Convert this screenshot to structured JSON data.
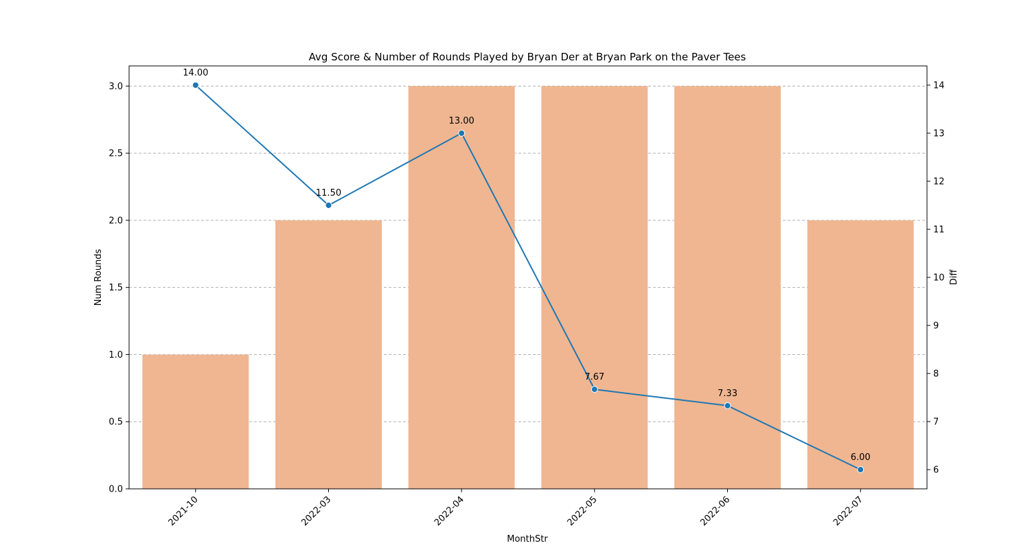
{
  "chart_data": {
    "type": "bar",
    "title": "Avg Score & Number of Rounds Played by Bryan Der at Bryan Park on the Paver Tees",
    "xlabel": "MonthStr",
    "ylabel_left": "Num Rounds",
    "ylabel_right": "Diff",
    "categories": [
      "2021-10",
      "2022-03",
      "2022-04",
      "2022-05",
      "2022-06",
      "2022-07"
    ],
    "series": [
      {
        "kind": "bar",
        "axis": "left",
        "values": [
          1,
          2,
          3,
          3,
          3,
          2
        ]
      },
      {
        "kind": "line",
        "axis": "right",
        "values": [
          14.0,
          11.5,
          13.0,
          7.67,
          7.33,
          6.0
        ]
      }
    ],
    "line_labels": [
      "14.00",
      "11.50",
      "13.00",
      "7.67",
      "7.33",
      "6.00"
    ],
    "ylim_left": [
      0,
      3.15
    ],
    "yticks_left": [
      "0.0",
      "0.5",
      "1.0",
      "1.5",
      "2.0",
      "2.5",
      "3.0"
    ],
    "ylim_right": [
      5.6,
      14.4
    ],
    "yticks_right": [
      "6",
      "7",
      "8",
      "9",
      "10",
      "11",
      "12",
      "13",
      "14"
    ],
    "grid": "horizontal dashed",
    "colors": {
      "bar": "#efb691",
      "line": "#1f77b4",
      "grid": "#b0b0b0"
    }
  }
}
